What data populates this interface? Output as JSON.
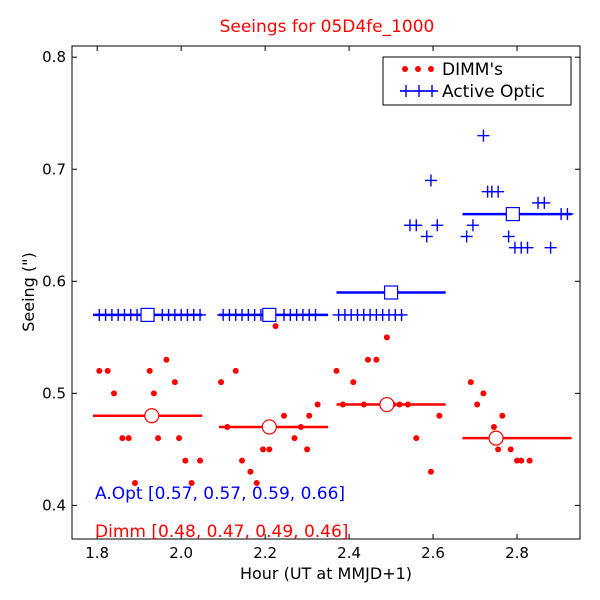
{
  "chart_data": {
    "type": "scatter",
    "title": "Seeings for 05D4fe_1000",
    "xlabel": "Hour (UT at MMJD+1)",
    "ylabel": "Seeing (\")",
    "xlim": [
      1.74,
      2.95
    ],
    "ylim": [
      0.37,
      0.81
    ],
    "xticks": [
      1.8,
      2.0,
      2.2,
      2.4,
      2.6,
      2.8
    ],
    "xtick_labels": [
      "1.8",
      "2.0",
      "2.2",
      "2.4",
      "2.6",
      "2.8"
    ],
    "yticks": [
      0.4,
      0.5,
      0.6,
      0.7,
      0.8
    ],
    "ytick_labels": [
      "0.4",
      "0.5",
      "0.6",
      "0.7",
      "0.8"
    ],
    "grid": false,
    "legend_position": "top-right",
    "colors": {
      "dimm": "#ff0000",
      "active_optic": "#0000ff",
      "title": "#ff0000"
    },
    "series": [
      {
        "name": "DIMM's",
        "marker": "dot",
        "x": [
          1.805,
          1.825,
          1.84,
          1.86,
          1.875,
          1.89,
          1.925,
          1.935,
          1.945,
          1.965,
          1.985,
          1.995,
          2.01,
          2.025,
          2.045,
          2.095,
          2.11,
          2.13,
          2.145,
          2.165,
          2.18,
          2.195,
          2.21,
          2.225,
          2.245,
          2.27,
          2.285,
          2.305,
          2.3,
          2.325,
          2.37,
          2.385,
          2.41,
          2.435,
          2.445,
          2.465,
          2.49,
          2.505,
          2.52,
          2.54,
          2.56,
          2.595,
          2.615,
          2.69,
          2.705,
          2.72,
          2.74,
          2.745,
          2.755,
          2.765,
          2.785,
          2.8,
          2.81,
          2.83
        ],
        "y": [
          0.52,
          0.52,
          0.5,
          0.46,
          0.46,
          0.42,
          0.52,
          0.5,
          0.46,
          0.53,
          0.51,
          0.46,
          0.44,
          0.42,
          0.44,
          0.51,
          0.47,
          0.52,
          0.44,
          0.43,
          0.42,
          0.45,
          0.45,
          0.56,
          0.48,
          0.46,
          0.47,
          0.48,
          0.45,
          0.49,
          0.52,
          0.49,
          0.51,
          0.49,
          0.53,
          0.53,
          0.55,
          0.49,
          0.49,
          0.49,
          0.46,
          0.43,
          0.48,
          0.51,
          0.49,
          0.5,
          0.46,
          0.47,
          0.45,
          0.48,
          0.45,
          0.44,
          0.44,
          0.44
        ]
      },
      {
        "name": "Active Optic",
        "marker": "plus",
        "x": [
          1.805,
          1.82,
          1.835,
          1.85,
          1.865,
          1.88,
          1.895,
          1.91,
          1.955,
          1.97,
          1.985,
          2.0,
          2.015,
          2.03,
          2.045,
          2.1,
          2.115,
          2.13,
          2.145,
          2.16,
          2.175,
          2.19,
          2.205,
          2.245,
          2.26,
          2.275,
          2.29,
          2.305,
          2.32,
          2.375,
          2.39,
          2.405,
          2.42,
          2.435,
          2.45,
          2.465,
          2.48,
          2.495,
          2.51,
          2.525,
          2.545,
          2.56,
          2.585,
          2.595,
          2.61,
          2.68,
          2.695,
          2.72,
          2.73,
          2.74,
          2.755,
          2.78,
          2.795,
          2.81,
          2.825,
          2.85,
          2.865,
          2.88,
          2.905,
          2.92
        ],
        "y": [
          0.57,
          0.57,
          0.57,
          0.57,
          0.57,
          0.57,
          0.57,
          0.57,
          0.57,
          0.57,
          0.57,
          0.57,
          0.57,
          0.57,
          0.57,
          0.57,
          0.57,
          0.57,
          0.57,
          0.57,
          0.57,
          0.57,
          0.57,
          0.57,
          0.57,
          0.57,
          0.57,
          0.57,
          0.57,
          0.57,
          0.57,
          0.57,
          0.57,
          0.57,
          0.57,
          0.57,
          0.57,
          0.57,
          0.57,
          0.57,
          0.65,
          0.65,
          0.64,
          0.69,
          0.65,
          0.64,
          0.65,
          0.73,
          0.68,
          0.68,
          0.68,
          0.64,
          0.63,
          0.63,
          0.63,
          0.67,
          0.67,
          0.63,
          0.66,
          0.66
        ]
      }
    ],
    "bin_medians": {
      "dimm": [
        {
          "x": 1.93,
          "y": 0.48,
          "x_from": 1.79,
          "x_to": 2.05
        },
        {
          "x": 2.21,
          "y": 0.47,
          "x_from": 2.09,
          "x_to": 2.35
        },
        {
          "x": 2.49,
          "y": 0.49,
          "x_from": 2.37,
          "x_to": 2.63
        },
        {
          "x": 2.75,
          "y": 0.46,
          "x_from": 2.67,
          "x_to": 2.93
        }
      ],
      "active_optic": [
        {
          "x": 1.92,
          "y": 0.57,
          "x_from": 1.79,
          "x_to": 2.05
        },
        {
          "x": 2.21,
          "y": 0.57,
          "x_from": 2.09,
          "x_to": 2.35
        },
        {
          "x": 2.5,
          "y": 0.59,
          "x_from": 2.37,
          "x_to": 2.63
        },
        {
          "x": 2.79,
          "y": 0.66,
          "x_from": 2.67,
          "x_to": 2.93
        }
      ]
    },
    "annotations": {
      "aopt": "A.Opt [0.57, 0.57, 0.59, 0.66]",
      "dimm": "Dimm [0.48, 0.47, 0.49, 0.46]"
    }
  }
}
